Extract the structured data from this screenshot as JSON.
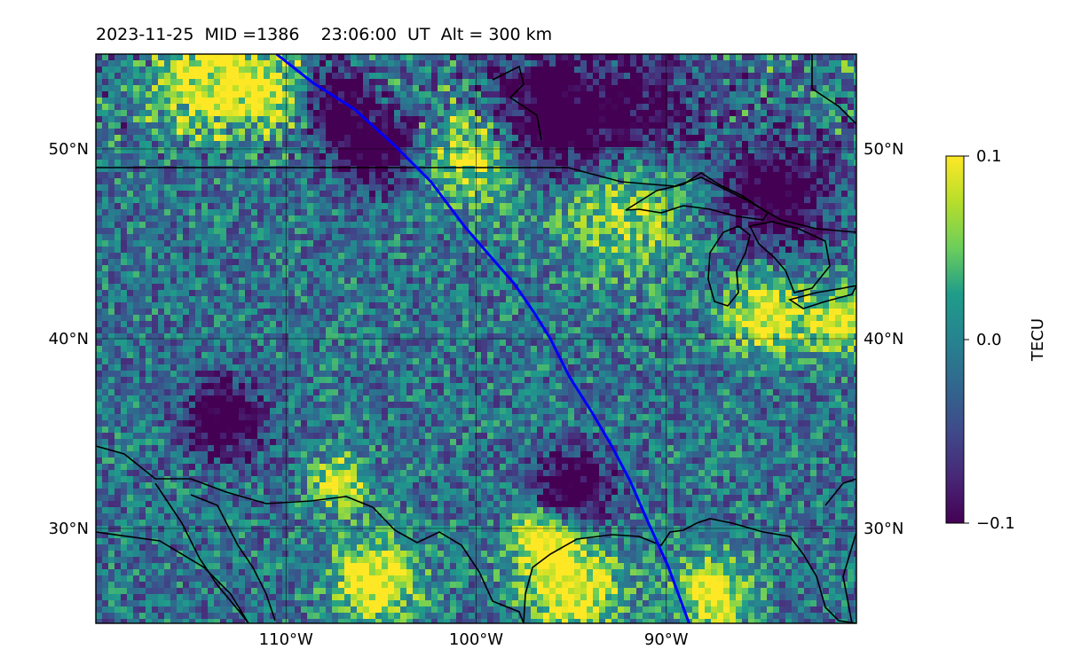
{
  "title": "2023-11-25  MID =1386    23:06:00  UT  Alt = 300 km",
  "map": {
    "extent": {
      "lon_min": -120,
      "lon_max": -80,
      "lat_min": 25,
      "lat_max": 55
    },
    "gridlines": {
      "lon": [
        -110,
        -100,
        -90
      ],
      "lat": [
        30,
        40,
        50
      ],
      "lon_labels": [
        "110°W",
        "100°W",
        "90°W"
      ],
      "lat_labels": [
        "30°N",
        "40°N",
        "50°N"
      ]
    },
    "track_color": "#0000ff",
    "coast_color": "#000000",
    "track": [
      [
        -110.5,
        55.0
      ],
      [
        -108.6,
        53.5
      ],
      [
        -106.4,
        52.1
      ],
      [
        -104.3,
        50.2
      ],
      [
        -102.4,
        48.3
      ],
      [
        -100.6,
        45.9
      ],
      [
        -99.3,
        44.4
      ],
      [
        -98.0,
        42.9
      ],
      [
        -96.9,
        41.3
      ],
      [
        -96.1,
        40.0
      ],
      [
        -95.1,
        38.0
      ],
      [
        -93.9,
        36.1
      ],
      [
        -92.9,
        34.4
      ],
      [
        -91.9,
        32.5
      ],
      [
        -90.9,
        30.2
      ],
      [
        -89.9,
        28.0
      ],
      [
        -88.8,
        25.0
      ]
    ]
  },
  "colorbar": {
    "label": "TECU",
    "min": -0.1,
    "max": 0.1,
    "ticks": [
      "0.1",
      "0.0",
      "−0.1"
    ],
    "colormap": "viridis",
    "stops": [
      "#440154",
      "#482777",
      "#3f4a8a",
      "#31678e",
      "#26838f",
      "#1f9d8a",
      "#6cce5a",
      "#b6de2b",
      "#fee825"
    ]
  }
}
